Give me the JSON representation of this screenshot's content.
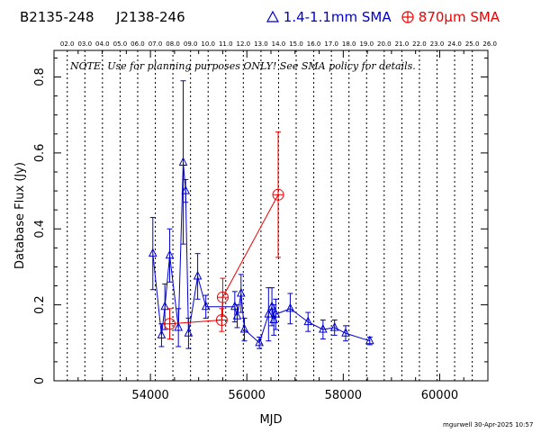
{
  "header": {
    "source_name": "B2135-248",
    "alt_name": "J2138-246",
    "legend_blue_label": "1.4-1.1mm SMA",
    "legend_red_label": "870µm SMA",
    "blue_color": "#0000cc",
    "red_color": "#ee0000"
  },
  "note": "NOTE: Use for planning purposes ONLY!  See SMA policy for details.",
  "footer": "mgurwell 30-Apr-2025 10:57",
  "chart_data": {
    "type": "scatter",
    "xlabel": "MJD",
    "ylabel": "Database Flux (Jy)",
    "xlim": [
      52000,
      61000
    ],
    "ylim": [
      0,
      0.87
    ],
    "x_ticks": [
      54000,
      56000,
      58000,
      60000
    ],
    "y_ticks": [
      0,
      0.2,
      0.4,
      0.6,
      0.8
    ],
    "year_labels": [
      "02.0",
      "03.0",
      "04.0",
      "05.0",
      "06.0",
      "07.0",
      "08.0",
      "09.0",
      "10.0",
      "11.0",
      "12.0",
      "13.0",
      "14.0",
      "15.0",
      "16.0",
      "17.0",
      "18.0",
      "19.0",
      "20.0",
      "21.0",
      "22.0",
      "23.0",
      "24.0",
      "25.0",
      "26.0"
    ],
    "year_mjd": [
      52275,
      52640,
      53005,
      53371,
      53736,
      54101,
      54466,
      54832,
      55197,
      55562,
      55927,
      56293,
      56658,
      57023,
      57388,
      57754,
      58119,
      58484,
      58849,
      59215,
      59580,
      59945,
      60310,
      60676,
      61041
    ],
    "series": [
      {
        "name": "1.4-1.1mm SMA",
        "color": "#0000cc",
        "marker": "triangle",
        "points": [
          {
            "x": 54050,
            "y": 0.335,
            "err": 0.095
          },
          {
            "x": 54230,
            "y": 0.12,
            "err": 0.03
          },
          {
            "x": 54300,
            "y": 0.195,
            "err": 0.06
          },
          {
            "x": 54400,
            "y": 0.33,
            "err": 0.07
          },
          {
            "x": 54580,
            "y": 0.14,
            "err": 0.05
          },
          {
            "x": 54680,
            "y": 0.575,
            "err": 0.215
          },
          {
            "x": 54730,
            "y": 0.5,
            "err": 0.03
          },
          {
            "x": 54790,
            "y": 0.125,
            "err": 0.04
          },
          {
            "x": 54980,
            "y": 0.275,
            "err": 0.06
          },
          {
            "x": 55150,
            "y": 0.195,
            "err": 0.03
          },
          {
            "x": 55750,
            "y": 0.195,
            "err": 0.04
          },
          {
            "x": 55800,
            "y": 0.17,
            "err": 0.03
          },
          {
            "x": 55880,
            "y": 0.23,
            "err": 0.05
          },
          {
            "x": 55950,
            "y": 0.135,
            "err": 0.03
          },
          {
            "x": 56260,
            "y": 0.1,
            "err": 0.015
          },
          {
            "x": 56450,
            "y": 0.175,
            "err": 0.07
          },
          {
            "x": 56520,
            "y": 0.195,
            "err": 0.05
          },
          {
            "x": 56560,
            "y": 0.16,
            "err": 0.04
          },
          {
            "x": 56600,
            "y": 0.175,
            "err": 0.04
          },
          {
            "x": 56900,
            "y": 0.19,
            "err": 0.04
          },
          {
            "x": 57270,
            "y": 0.155,
            "err": 0.025
          },
          {
            "x": 57580,
            "y": 0.135,
            "err": 0.025
          },
          {
            "x": 57820,
            "y": 0.14,
            "err": 0.02
          },
          {
            "x": 58050,
            "y": 0.125,
            "err": 0.02
          },
          {
            "x": 58550,
            "y": 0.105,
            "err": 0.01
          }
        ]
      },
      {
        "name": "870µm SMA",
        "color": "#ee0000",
        "marker": "circle-plus",
        "points": [
          {
            "x": 54400,
            "y": 0.15,
            "err": 0.04
          },
          {
            "x": 55480,
            "y": 0.16,
            "err": 0.03
          },
          {
            "x": 55500,
            "y": 0.22,
            "err": 0.05
          },
          {
            "x": 56650,
            "y": 0.49,
            "err": 0.165
          }
        ]
      }
    ]
  }
}
